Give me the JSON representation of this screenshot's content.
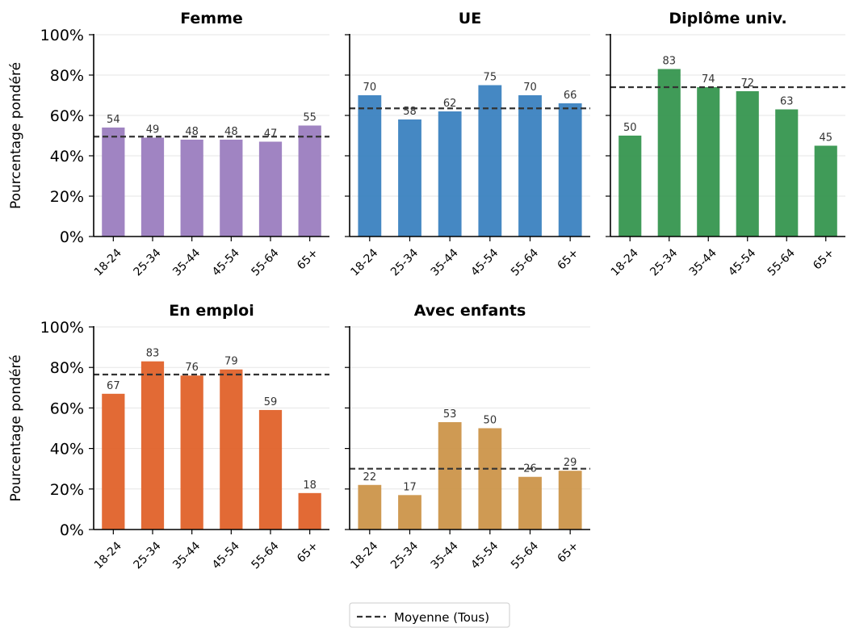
{
  "chart_data": {
    "type": "bar",
    "ylabel": "Pourcentage pondéré",
    "ylim": [
      0,
      100
    ],
    "yticks": [
      "0%",
      "20%",
      "40%",
      "60%",
      "80%",
      "100%"
    ],
    "categories": [
      "18-24",
      "25-34",
      "35-44",
      "45-54",
      "55-64",
      "65+"
    ],
    "grid": "horizontal",
    "legend": {
      "label": "Moyenne (Tous)",
      "placement": "bottom-center",
      "style": "dashed",
      "color": "#333333"
    },
    "panels": [
      {
        "title": "Femme",
        "color": "#9b7dbf",
        "values": [
          54,
          49,
          48,
          48,
          47,
          55
        ],
        "mean": 49.5
      },
      {
        "title": "UE",
        "color": "#3b82c0",
        "values": [
          70,
          58,
          62,
          75,
          70,
          66
        ],
        "mean": 63.5
      },
      {
        "title": "Diplôme univ.",
        "color": "#36964f",
        "values": [
          50,
          83,
          74,
          72,
          63,
          45
        ],
        "mean": 74
      },
      {
        "title": "En emploi",
        "color": "#e0622a",
        "values": [
          67,
          83,
          76,
          79,
          59,
          18
        ],
        "mean": 76.5
      },
      {
        "title": "Avec enfants",
        "color": "#cc954a",
        "values": [
          22,
          17,
          53,
          50,
          26,
          29
        ],
        "mean": 30
      }
    ]
  }
}
